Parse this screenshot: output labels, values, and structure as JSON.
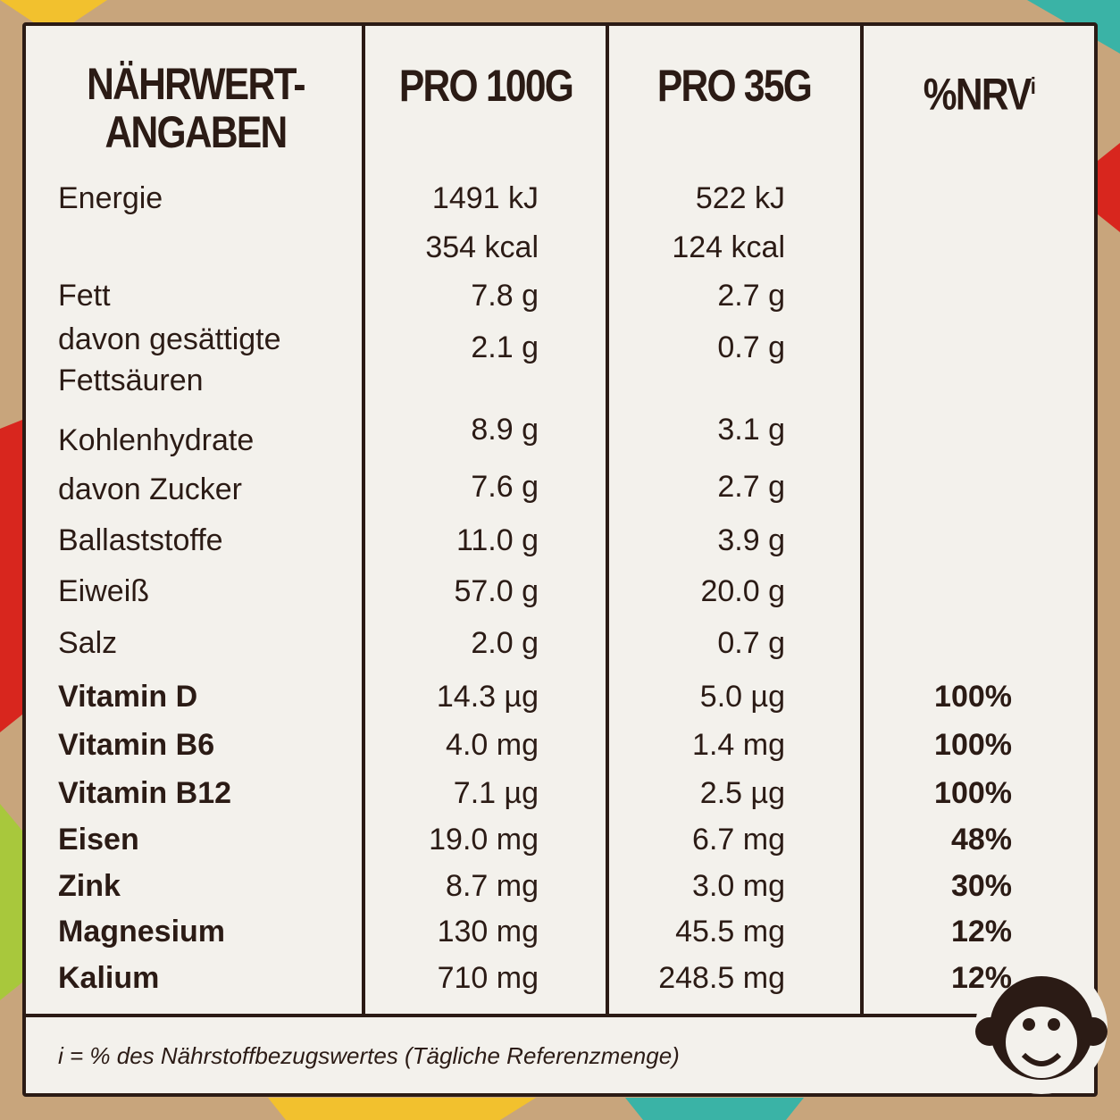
{
  "table": {
    "header": {
      "col0": [
        "NÄHRWERT-",
        "ANGABEN"
      ],
      "col1": "PRO 100G",
      "col2": "PRO 35G",
      "col3": {
        "text": "%NRV",
        "sup": "i"
      }
    },
    "rows": [
      [
        "Energie",
        "1491 kJ",
        "522 kJ",
        null
      ],
      [
        null,
        "354 kcal",
        "124 kcal",
        null
      ],
      [
        "Fett",
        "7.8 g",
        "2.7 g",
        null
      ],
      [
        "davon gesättigte Fettsäuren",
        "2.1 g",
        "0.7 g",
        null
      ],
      [
        "Kohlenhydrate",
        "8.9 g",
        "3.1 g",
        null
      ],
      [
        "davon Zucker",
        "7.6 g",
        "2.7 g",
        null
      ],
      [
        "Ballaststoffe",
        "11.0 g",
        "3.9 g",
        null
      ],
      [
        "Eiweiß",
        "57.0 g",
        "20.0 g",
        null
      ],
      [
        "Salz",
        "2.0 g",
        "0.7 g",
        null
      ],
      [
        "Vitamin D",
        "14.3 µg",
        "5.0 µg",
        "100%"
      ],
      [
        "Vitamin B6",
        "4.0 mg",
        "1.4 mg",
        "100%"
      ],
      [
        "Vitamin B12",
        "7.1 µg",
        "2.5 µg",
        "100%"
      ],
      [
        "Eisen",
        "19.0 mg",
        "6.7 mg",
        "48%"
      ],
      [
        "Zink",
        "8.7 mg",
        "3.0 mg",
        "30%"
      ],
      [
        "Magnesium",
        "130 mg",
        "45.5 mg",
        "12%"
      ],
      [
        "Kalium",
        "710 mg",
        "248.5 mg",
        "12%"
      ]
    ],
    "footnote": "i = % des Nährstoffbezugswertes (Tägliche Referenzmenge)"
  }
}
